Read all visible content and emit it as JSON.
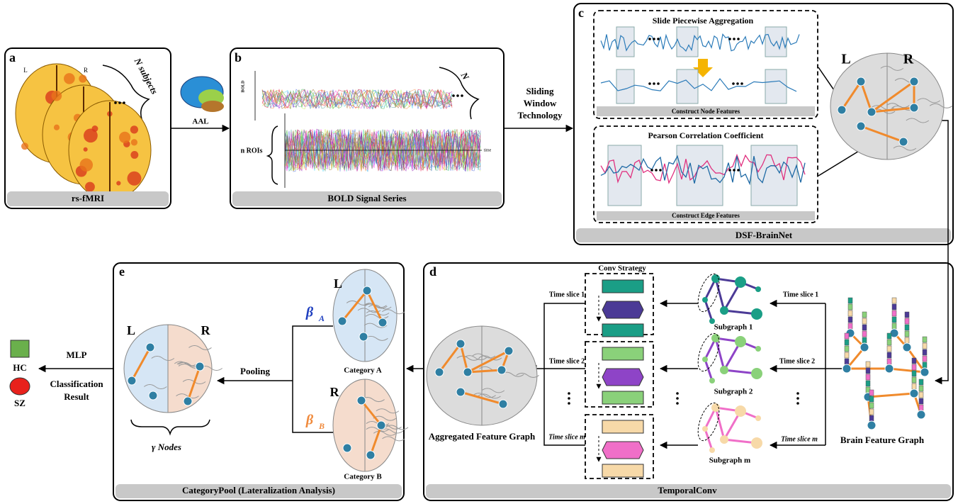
{
  "panel_a": {
    "letter": "a",
    "left": "L",
    "right": "R",
    "subjects": "N subjects",
    "title": "rs-fMRI"
  },
  "atlas": "AAL",
  "panel_b": {
    "letter": "b",
    "axis_y": "BOLD",
    "axis_x": "time",
    "rois": "n ROIs",
    "count": "N",
    "title": "BOLD Signal Series"
  },
  "transition": [
    "Sliding",
    "Window",
    "Technology"
  ],
  "panel_c": {
    "letter": "c",
    "node_box": {
      "title": "Slide Piecewise Aggregation",
      "caption": "Construct Node Features"
    },
    "edge_box": {
      "title": "Pearson Correlation Coefficient",
      "caption": "Construct Edge Features"
    },
    "left": "L",
    "right": "R",
    "title": "DSF-BrainNet"
  },
  "panel_d": {
    "letter": "d",
    "conv_title": "Conv Strategy",
    "time_slices_left": [
      "Time slice 1",
      "Time slice 2",
      "Time slice m"
    ],
    "time_slices_right": [
      "Time slice 1",
      "Time slice 2",
      "Time slice m"
    ],
    "subgraphs": [
      "Subgraph 1",
      "Subgraph 2",
      "Subgraph m"
    ],
    "aggregated": "Aggregated Feature Graph",
    "brain_graph": "Brain Feature Graph",
    "title": "TemporalConv"
  },
  "panel_e": {
    "letter": "e",
    "left": "L",
    "right": "R",
    "beta_a": {
      "symbol": "β",
      "sub": "A"
    },
    "beta_b": {
      "symbol": "β",
      "sub": "B"
    },
    "category_a_side": "L",
    "category_b_side": "R",
    "category_a": "Category A",
    "category_b": "Category B",
    "pooling": "Pooling",
    "gamma": "γ  Nodes",
    "title": "CategoryPool (Lateralization Analysis)"
  },
  "output": {
    "mlp": "MLP",
    "result": [
      "Classification",
      "Result"
    ],
    "hc": "HC",
    "sz": "SZ"
  }
}
